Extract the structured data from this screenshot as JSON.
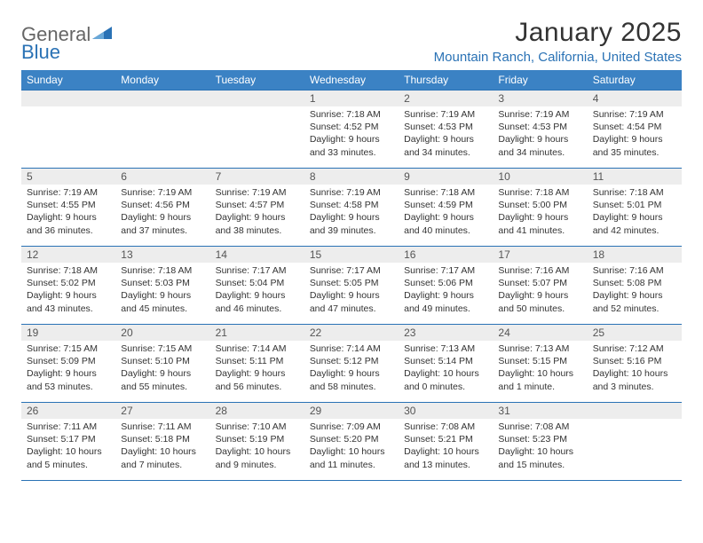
{
  "logo": {
    "word1": "General",
    "word2": "Blue"
  },
  "title": "January 2025",
  "location": "Mountain Ranch, California, United States",
  "colors": {
    "header_bg": "#3b82c4",
    "header_text": "#ffffff",
    "grid_border": "#2a72b5",
    "daynum_bg": "#ededed",
    "body_text": "#333333",
    "accent": "#2a72b5"
  },
  "weekdays": [
    "Sunday",
    "Monday",
    "Tuesday",
    "Wednesday",
    "Thursday",
    "Friday",
    "Saturday"
  ],
  "weeks": [
    [
      null,
      null,
      null,
      {
        "d": "1",
        "sr": "7:18 AM",
        "ss": "4:52 PM",
        "dl": "9 hours and 33 minutes."
      },
      {
        "d": "2",
        "sr": "7:19 AM",
        "ss": "4:53 PM",
        "dl": "9 hours and 34 minutes."
      },
      {
        "d": "3",
        "sr": "7:19 AM",
        "ss": "4:53 PM",
        "dl": "9 hours and 34 minutes."
      },
      {
        "d": "4",
        "sr": "7:19 AM",
        "ss": "4:54 PM",
        "dl": "9 hours and 35 minutes."
      }
    ],
    [
      {
        "d": "5",
        "sr": "7:19 AM",
        "ss": "4:55 PM",
        "dl": "9 hours and 36 minutes."
      },
      {
        "d": "6",
        "sr": "7:19 AM",
        "ss": "4:56 PM",
        "dl": "9 hours and 37 minutes."
      },
      {
        "d": "7",
        "sr": "7:19 AM",
        "ss": "4:57 PM",
        "dl": "9 hours and 38 minutes."
      },
      {
        "d": "8",
        "sr": "7:19 AM",
        "ss": "4:58 PM",
        "dl": "9 hours and 39 minutes."
      },
      {
        "d": "9",
        "sr": "7:18 AM",
        "ss": "4:59 PM",
        "dl": "9 hours and 40 minutes."
      },
      {
        "d": "10",
        "sr": "7:18 AM",
        "ss": "5:00 PM",
        "dl": "9 hours and 41 minutes."
      },
      {
        "d": "11",
        "sr": "7:18 AM",
        "ss": "5:01 PM",
        "dl": "9 hours and 42 minutes."
      }
    ],
    [
      {
        "d": "12",
        "sr": "7:18 AM",
        "ss": "5:02 PM",
        "dl": "9 hours and 43 minutes."
      },
      {
        "d": "13",
        "sr": "7:18 AM",
        "ss": "5:03 PM",
        "dl": "9 hours and 45 minutes."
      },
      {
        "d": "14",
        "sr": "7:17 AM",
        "ss": "5:04 PM",
        "dl": "9 hours and 46 minutes."
      },
      {
        "d": "15",
        "sr": "7:17 AM",
        "ss": "5:05 PM",
        "dl": "9 hours and 47 minutes."
      },
      {
        "d": "16",
        "sr": "7:17 AM",
        "ss": "5:06 PM",
        "dl": "9 hours and 49 minutes."
      },
      {
        "d": "17",
        "sr": "7:16 AM",
        "ss": "5:07 PM",
        "dl": "9 hours and 50 minutes."
      },
      {
        "d": "18",
        "sr": "7:16 AM",
        "ss": "5:08 PM",
        "dl": "9 hours and 52 minutes."
      }
    ],
    [
      {
        "d": "19",
        "sr": "7:15 AM",
        "ss": "5:09 PM",
        "dl": "9 hours and 53 minutes."
      },
      {
        "d": "20",
        "sr": "7:15 AM",
        "ss": "5:10 PM",
        "dl": "9 hours and 55 minutes."
      },
      {
        "d": "21",
        "sr": "7:14 AM",
        "ss": "5:11 PM",
        "dl": "9 hours and 56 minutes."
      },
      {
        "d": "22",
        "sr": "7:14 AM",
        "ss": "5:12 PM",
        "dl": "9 hours and 58 minutes."
      },
      {
        "d": "23",
        "sr": "7:13 AM",
        "ss": "5:14 PM",
        "dl": "10 hours and 0 minutes."
      },
      {
        "d": "24",
        "sr": "7:13 AM",
        "ss": "5:15 PM",
        "dl": "10 hours and 1 minute."
      },
      {
        "d": "25",
        "sr": "7:12 AM",
        "ss": "5:16 PM",
        "dl": "10 hours and 3 minutes."
      }
    ],
    [
      {
        "d": "26",
        "sr": "7:11 AM",
        "ss": "5:17 PM",
        "dl": "10 hours and 5 minutes."
      },
      {
        "d": "27",
        "sr": "7:11 AM",
        "ss": "5:18 PM",
        "dl": "10 hours and 7 minutes."
      },
      {
        "d": "28",
        "sr": "7:10 AM",
        "ss": "5:19 PM",
        "dl": "10 hours and 9 minutes."
      },
      {
        "d": "29",
        "sr": "7:09 AM",
        "ss": "5:20 PM",
        "dl": "10 hours and 11 minutes."
      },
      {
        "d": "30",
        "sr": "7:08 AM",
        "ss": "5:21 PM",
        "dl": "10 hours and 13 minutes."
      },
      {
        "d": "31",
        "sr": "7:08 AM",
        "ss": "5:23 PM",
        "dl": "10 hours and 15 minutes."
      },
      null
    ]
  ],
  "labels": {
    "sunrise": "Sunrise:",
    "sunset": "Sunset:",
    "daylight": "Daylight:"
  }
}
